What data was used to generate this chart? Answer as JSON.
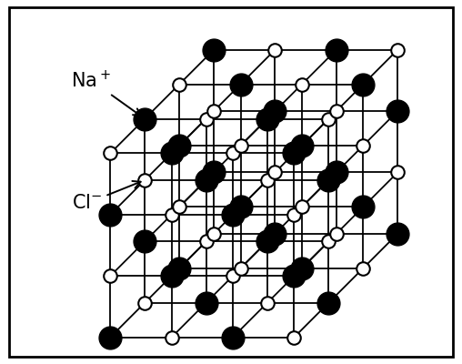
{
  "background_color": "#ffffff",
  "line_color": "#000000",
  "line_width": 1.3,
  "na_color": "#000000",
  "cl_color": "#ffffff",
  "cl_edge_color": "#000000",
  "na_label": "Na$^+$",
  "cl_label": "Cl$^{-}$",
  "label_fontsize": 15,
  "figsize": [
    5.08,
    4.0
  ],
  "dpi": 100,
  "N": 3,
  "sx": 0.8,
  "sy": 0.8,
  "pdx": 0.45,
  "pdy": 0.45,
  "ox": 1.5,
  "oy": 0.5,
  "na_s": 320,
  "cl_s": 110,
  "na_lw": 1.0,
  "cl_lw": 1.5
}
